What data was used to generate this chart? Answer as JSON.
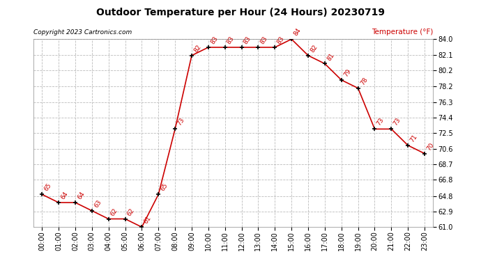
{
  "title": "Outdoor Temperature per Hour (24 Hours) 20230719",
  "copyright": "Copyright 2023 Cartronics.com",
  "ylabel": "Temperature (°F)",
  "hours": [
    "00:00",
    "01:00",
    "02:00",
    "03:00",
    "04:00",
    "05:00",
    "06:00",
    "07:00",
    "08:00",
    "09:00",
    "10:00",
    "11:00",
    "12:00",
    "13:00",
    "14:00",
    "15:00",
    "16:00",
    "17:00",
    "18:00",
    "19:00",
    "20:00",
    "21:00",
    "22:00",
    "23:00"
  ],
  "temperatures": [
    65,
    64,
    64,
    63,
    62,
    62,
    61,
    65,
    73,
    82,
    83,
    83,
    83,
    83,
    83,
    84,
    82,
    81,
    79,
    78,
    73,
    73,
    71,
    70
  ],
  "line_color": "#cc0000",
  "marker_color": "#000000",
  "label_color": "#cc0000",
  "bg_color": "#ffffff",
  "grid_color": "#bbbbbb",
  "title_color": "#000000",
  "copyright_color": "#000000",
  "ylabel_color": "#cc0000",
  "ylim_min": 61.0,
  "ylim_max": 84.0,
  "yticks": [
    61.0,
    62.9,
    64.8,
    66.8,
    68.7,
    70.6,
    72.5,
    74.4,
    76.3,
    78.2,
    80.2,
    82.1,
    84.0
  ]
}
